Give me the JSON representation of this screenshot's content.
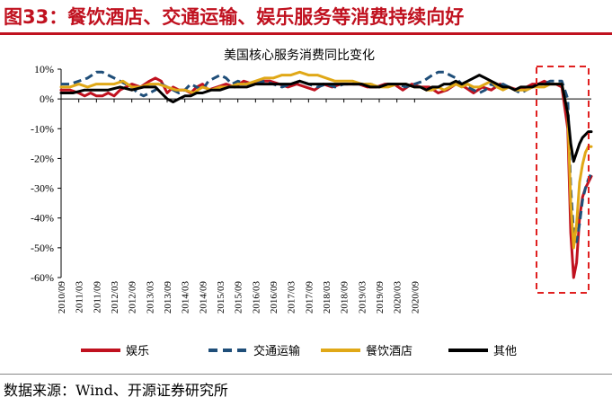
{
  "figure_title": "图33：餐饮酒店、交通运输、娱乐服务等消费持续向好",
  "source": "数据来源：Wind、开源证券研究所",
  "colors": {
    "title": "#c0111f",
    "entertainment": "#c0111f",
    "transport": "#1f4e79",
    "dining": "#e0a817",
    "other": "#000000",
    "highlight_box": "#e02020"
  },
  "chart_data": {
    "type": "line",
    "title": "美国核心服务消费同比变化",
    "xlabel": "",
    "ylabel": "",
    "ylim": [
      -60,
      10
    ],
    "y_ticks": [
      10,
      0,
      -10,
      -20,
      -30,
      -40,
      -50,
      -60
    ],
    "y_tick_labels": [
      "10%",
      "0%",
      "-10%",
      "-20%",
      "-30%",
      "-40%",
      "-50%",
      "-60%"
    ],
    "x_tick_labels": [
      "2010/09",
      "2011/03",
      "2011/09",
      "2012/03",
      "2012/09",
      "2013/03",
      "2013/09",
      "2014/03",
      "2014/09",
      "2015/03",
      "2015/09",
      "2016/03",
      "2016/09",
      "2017/03",
      "2017/09",
      "2018/03",
      "2018/09",
      "2019/03",
      "2019/09",
      "2020/03",
      "2020/09"
    ],
    "x_start": "2010/09",
    "x_end": "2020/09",
    "legend_position": "bottom",
    "highlight": {
      "from": "2020/01",
      "to": "2020/09",
      "style": "dashed red box"
    },
    "series": [
      {
        "name": "娱乐",
        "color_key": "entertainment",
        "style": "solid",
        "points": [
          [
            0,
            3
          ],
          [
            3,
            3
          ],
          [
            6,
            2
          ],
          [
            8,
            1
          ],
          [
            10,
            2
          ],
          [
            12,
            1
          ],
          [
            14,
            1
          ],
          [
            16,
            2
          ],
          [
            18,
            1
          ],
          [
            20,
            3
          ],
          [
            22,
            4
          ],
          [
            24,
            5
          ],
          [
            27,
            4
          ],
          [
            30,
            6
          ],
          [
            32,
            7
          ],
          [
            34,
            6
          ],
          [
            36,
            2
          ],
          [
            38,
            4
          ],
          [
            40,
            3
          ],
          [
            42,
            3
          ],
          [
            44,
            2
          ],
          [
            46,
            4
          ],
          [
            48,
            5
          ],
          [
            50,
            3
          ],
          [
            53,
            4
          ],
          [
            56,
            5
          ],
          [
            59,
            4
          ],
          [
            62,
            6
          ],
          [
            65,
            5
          ],
          [
            68,
            6
          ],
          [
            71,
            6
          ],
          [
            74,
            5
          ],
          [
            77,
            4
          ],
          [
            80,
            5
          ],
          [
            83,
            4
          ],
          [
            86,
            3
          ],
          [
            89,
            5
          ],
          [
            92,
            4
          ],
          [
            95,
            5
          ],
          [
            98,
            5
          ],
          [
            101,
            5
          ],
          [
            104,
            4
          ],
          [
            107,
            4
          ],
          [
            110,
            5
          ],
          [
            113,
            5
          ],
          [
            116,
            3
          ],
          [
            119,
            5
          ],
          [
            122,
            4
          ],
          [
            125,
            4
          ],
          [
            128,
            2
          ],
          [
            131,
            3
          ],
          [
            134,
            5
          ],
          [
            137,
            4
          ],
          [
            140,
            2
          ],
          [
            143,
            4
          ],
          [
            146,
            3
          ],
          [
            149,
            5
          ],
          [
            152,
            4
          ],
          [
            155,
            3
          ],
          [
            158,
            4
          ],
          [
            160,
            5
          ],
          [
            162,
            5
          ],
          [
            164,
            6
          ],
          [
            166,
            5
          ],
          [
            168,
            5
          ],
          [
            170,
            4
          ],
          [
            172,
            -10
          ],
          [
            173,
            -45
          ],
          [
            174,
            -60
          ],
          [
            175,
            -55
          ],
          [
            176,
            -40
          ],
          [
            177,
            -33
          ],
          [
            178,
            -30
          ],
          [
            179,
            -28
          ],
          [
            180,
            -26
          ]
        ]
      },
      {
        "name": "交通运输",
        "color_key": "transport",
        "style": "dashed",
        "points": [
          [
            0,
            5
          ],
          [
            3,
            5
          ],
          [
            6,
            6
          ],
          [
            9,
            7
          ],
          [
            12,
            9
          ],
          [
            14,
            9
          ],
          [
            16,
            8
          ],
          [
            18,
            7
          ],
          [
            20,
            6
          ],
          [
            22,
            5
          ],
          [
            24,
            4
          ],
          [
            26,
            2
          ],
          [
            28,
            1
          ],
          [
            30,
            2
          ],
          [
            32,
            3
          ],
          [
            34,
            5
          ],
          [
            36,
            4
          ],
          [
            38,
            3
          ],
          [
            40,
            2
          ],
          [
            42,
            3
          ],
          [
            44,
            5
          ],
          [
            46,
            4
          ],
          [
            48,
            3
          ],
          [
            50,
            6
          ],
          [
            52,
            7
          ],
          [
            54,
            8
          ],
          [
            56,
            7
          ],
          [
            58,
            5
          ],
          [
            60,
            6
          ],
          [
            63,
            5
          ],
          [
            66,
            5
          ],
          [
            69,
            6
          ],
          [
            72,
            5
          ],
          [
            75,
            4
          ],
          [
            78,
            5
          ],
          [
            81,
            6
          ],
          [
            84,
            5
          ],
          [
            87,
            4
          ],
          [
            90,
            5
          ],
          [
            93,
            4
          ],
          [
            96,
            5
          ],
          [
            99,
            5
          ],
          [
            102,
            5
          ],
          [
            105,
            5
          ],
          [
            108,
            4
          ],
          [
            111,
            5
          ],
          [
            114,
            5
          ],
          [
            117,
            4
          ],
          [
            120,
            5
          ],
          [
            123,
            6
          ],
          [
            126,
            8
          ],
          [
            128,
            9
          ],
          [
            130,
            9
          ],
          [
            132,
            8
          ],
          [
            134,
            7
          ],
          [
            136,
            5
          ],
          [
            138,
            4
          ],
          [
            140,
            3
          ],
          [
            142,
            2
          ],
          [
            144,
            3
          ],
          [
            146,
            5
          ],
          [
            148,
            4
          ],
          [
            150,
            5
          ],
          [
            152,
            4
          ],
          [
            154,
            3
          ],
          [
            156,
            2
          ],
          [
            158,
            3
          ],
          [
            160,
            4
          ],
          [
            162,
            5
          ],
          [
            164,
            5
          ],
          [
            166,
            6
          ],
          [
            168,
            6
          ],
          [
            170,
            6
          ],
          [
            172,
            0
          ],
          [
            173,
            -30
          ],
          [
            174,
            -45
          ],
          [
            175,
            -48
          ],
          [
            176,
            -42
          ],
          [
            177,
            -34
          ],
          [
            178,
            -30
          ],
          [
            179,
            -27
          ],
          [
            180,
            -25
          ]
        ]
      },
      {
        "name": "餐饮酒店",
        "color_key": "dining",
        "style": "solid",
        "points": [
          [
            0,
            4
          ],
          [
            3,
            4
          ],
          [
            6,
            5
          ],
          [
            9,
            4
          ],
          [
            12,
            5
          ],
          [
            15,
            5
          ],
          [
            18,
            5
          ],
          [
            21,
            6
          ],
          [
            24,
            4
          ],
          [
            27,
            4
          ],
          [
            30,
            5
          ],
          [
            33,
            5
          ],
          [
            36,
            4
          ],
          [
            39,
            3
          ],
          [
            42,
            3
          ],
          [
            45,
            2
          ],
          [
            48,
            4
          ],
          [
            51,
            3
          ],
          [
            54,
            4
          ],
          [
            57,
            4
          ],
          [
            60,
            5
          ],
          [
            63,
            5
          ],
          [
            66,
            6
          ],
          [
            69,
            7
          ],
          [
            72,
            7
          ],
          [
            75,
            8
          ],
          [
            78,
            8
          ],
          [
            81,
            9
          ],
          [
            84,
            8
          ],
          [
            87,
            8
          ],
          [
            90,
            7
          ],
          [
            93,
            6
          ],
          [
            96,
            6
          ],
          [
            99,
            6
          ],
          [
            102,
            5
          ],
          [
            105,
            5
          ],
          [
            108,
            4
          ],
          [
            111,
            4
          ],
          [
            114,
            5
          ],
          [
            117,
            5
          ],
          [
            120,
            4
          ],
          [
            122,
            4
          ],
          [
            124,
            3
          ],
          [
            126,
            3
          ],
          [
            128,
            4
          ],
          [
            130,
            3
          ],
          [
            132,
            4
          ],
          [
            134,
            5
          ],
          [
            136,
            4
          ],
          [
            138,
            5
          ],
          [
            140,
            4
          ],
          [
            142,
            4
          ],
          [
            144,
            5
          ],
          [
            146,
            6
          ],
          [
            148,
            4
          ],
          [
            150,
            3
          ],
          [
            152,
            4
          ],
          [
            154,
            3
          ],
          [
            156,
            3
          ],
          [
            158,
            3
          ],
          [
            160,
            4
          ],
          [
            162,
            4
          ],
          [
            164,
            4
          ],
          [
            166,
            5
          ],
          [
            168,
            5
          ],
          [
            170,
            5
          ],
          [
            172,
            -5
          ],
          [
            173,
            -35
          ],
          [
            174,
            -50
          ],
          [
            175,
            -42
          ],
          [
            176,
            -28
          ],
          [
            177,
            -22
          ],
          [
            178,
            -18
          ],
          [
            179,
            -16
          ],
          [
            180,
            -16
          ]
        ]
      },
      {
        "name": "其他",
        "color_key": "other",
        "style": "solid",
        "points": [
          [
            0,
            2
          ],
          [
            4,
            2
          ],
          [
            8,
            3
          ],
          [
            12,
            3
          ],
          [
            16,
            3
          ],
          [
            20,
            4
          ],
          [
            24,
            3
          ],
          [
            28,
            4
          ],
          [
            32,
            4
          ],
          [
            34,
            2
          ],
          [
            36,
            0
          ],
          [
            38,
            -1
          ],
          [
            40,
            0
          ],
          [
            42,
            1
          ],
          [
            44,
            1
          ],
          [
            46,
            2
          ],
          [
            48,
            2
          ],
          [
            51,
            3
          ],
          [
            54,
            3
          ],
          [
            57,
            4
          ],
          [
            60,
            4
          ],
          [
            63,
            4
          ],
          [
            66,
            5
          ],
          [
            69,
            5
          ],
          [
            72,
            5
          ],
          [
            75,
            5
          ],
          [
            78,
            5
          ],
          [
            81,
            6
          ],
          [
            84,
            5
          ],
          [
            87,
            5
          ],
          [
            90,
            5
          ],
          [
            93,
            5
          ],
          [
            96,
            5
          ],
          [
            99,
            5
          ],
          [
            102,
            5
          ],
          [
            105,
            4
          ],
          [
            108,
            4
          ],
          [
            111,
            5
          ],
          [
            114,
            5
          ],
          [
            117,
            5
          ],
          [
            120,
            4
          ],
          [
            122,
            4
          ],
          [
            124,
            3
          ],
          [
            126,
            4
          ],
          [
            128,
            4
          ],
          [
            130,
            5
          ],
          [
            132,
            5
          ],
          [
            134,
            6
          ],
          [
            136,
            5
          ],
          [
            138,
            6
          ],
          [
            140,
            7
          ],
          [
            142,
            8
          ],
          [
            144,
            7
          ],
          [
            146,
            6
          ],
          [
            148,
            5
          ],
          [
            150,
            4
          ],
          [
            152,
            4
          ],
          [
            154,
            3
          ],
          [
            156,
            4
          ],
          [
            158,
            4
          ],
          [
            160,
            4
          ],
          [
            162,
            5
          ],
          [
            164,
            5
          ],
          [
            166,
            5
          ],
          [
            168,
            5
          ],
          [
            170,
            5
          ],
          [
            172,
            -5
          ],
          [
            173,
            -15
          ],
          [
            174,
            -21
          ],
          [
            175,
            -18
          ],
          [
            176,
            -15
          ],
          [
            177,
            -13
          ],
          [
            178,
            -12
          ],
          [
            179,
            -11
          ],
          [
            180,
            -11
          ]
        ]
      }
    ]
  }
}
